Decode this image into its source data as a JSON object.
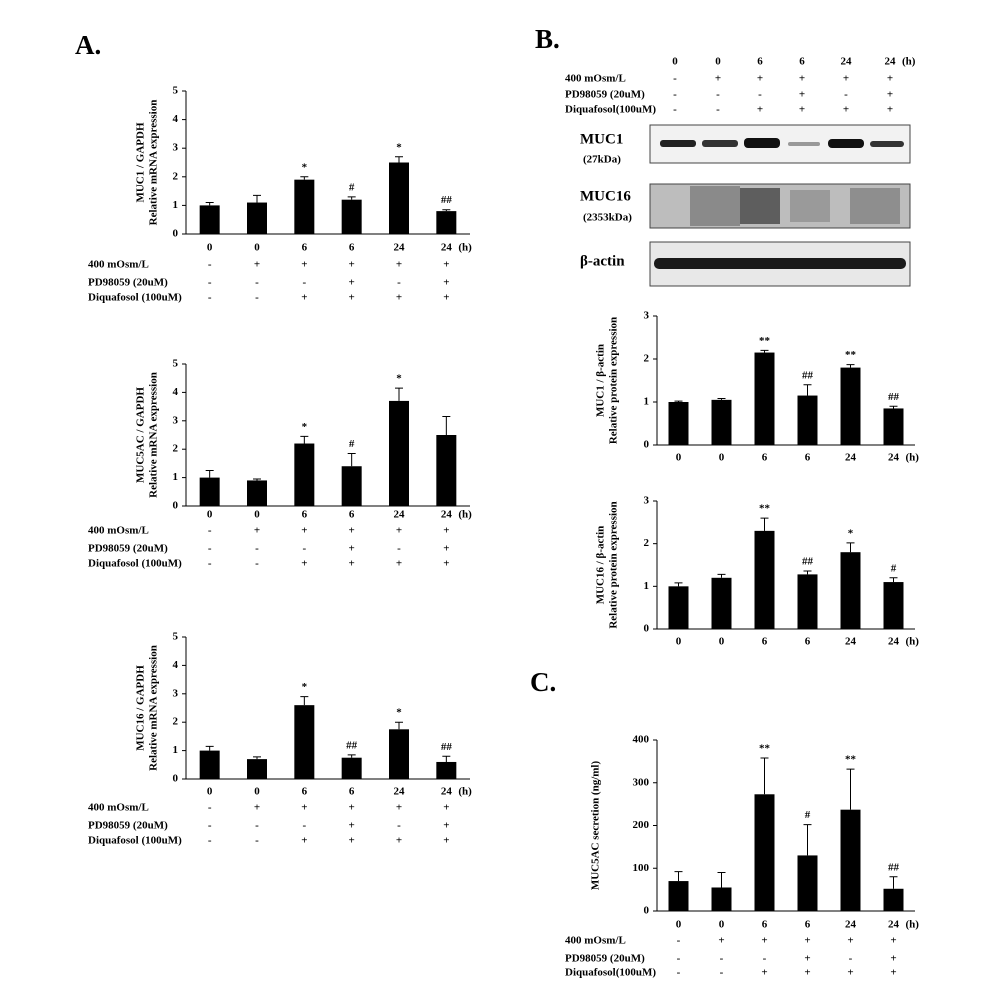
{
  "panel_labels": [
    "A.",
    "B.",
    "C."
  ],
  "blot": {
    "categories": [
      "0",
      "0",
      "6",
      "6",
      "24",
      "24"
    ],
    "x_unit": "(h)",
    "conditions": [
      {
        "label": "400 mOsm/L",
        "signs": [
          "-",
          "+",
          "+",
          "+",
          "+",
          "+"
        ]
      },
      {
        "label": "PD98059 (20uM)",
        "signs": [
          "-",
          "-",
          "-",
          "+",
          "-",
          "+"
        ]
      },
      {
        "label": "Diquafosol(100uM)",
        "signs": [
          "-",
          "-",
          "+",
          "+",
          "+",
          "+"
        ]
      }
    ],
    "rows": [
      {
        "label": "MUC1",
        "sublabel": "(27kDa)"
      },
      {
        "label": "MUC16",
        "sublabel": "(2353kDa)"
      },
      {
        "label": "β-actin"
      }
    ]
  },
  "chart_data": [
    {
      "type": "bar",
      "y_label": [
        "MUC1 / GAPDH",
        "Relative mRNA expression"
      ],
      "categories": [
        "0",
        "0",
        "6",
        "6",
        "24",
        "24"
      ],
      "x_unit": "(h)",
      "series": [
        {
          "color": "#000000",
          "values": [
            1.0,
            1.1,
            1.9,
            1.2,
            2.5,
            0.8
          ],
          "errors": [
            0.1,
            0.25,
            0.1,
            0.1,
            0.2,
            0.05
          ]
        }
      ],
      "annotations": [
        null,
        null,
        "*",
        "#",
        "*",
        "##"
      ],
      "ylim": [
        0,
        5
      ],
      "yticks": [
        0,
        1,
        2,
        3,
        4,
        5
      ],
      "conditions": [
        {
          "label": "400 mOsm/L",
          "signs": [
            "-",
            "+",
            "+",
            "+",
            "+",
            "+"
          ]
        },
        {
          "label": "PD98059 (20uM)",
          "signs": [
            "-",
            "-",
            "-",
            "+",
            "-",
            "+"
          ]
        },
        {
          "label": "Diquafosol (100uM)",
          "signs": [
            "-",
            "-",
            "+",
            "+",
            "+",
            "+"
          ]
        }
      ]
    },
    {
      "type": "bar",
      "y_label": [
        "MUC5AC / GAPDH",
        "Relative mRNA expression"
      ],
      "categories": [
        "0",
        "0",
        "6",
        "6",
        "24",
        "24"
      ],
      "x_unit": "(h)",
      "series": [
        {
          "color": "#000000",
          "values": [
            1.0,
            0.9,
            2.2,
            1.4,
            3.7,
            2.5
          ],
          "errors": [
            0.25,
            0.05,
            0.25,
            0.45,
            0.45,
            0.65
          ]
        }
      ],
      "annotations": [
        null,
        null,
        "*",
        "#",
        "*",
        null
      ],
      "ylim": [
        0,
        5
      ],
      "yticks": [
        0,
        1,
        2,
        3,
        4,
        5
      ],
      "conditions": [
        {
          "label": "400 mOsm/L",
          "signs": [
            "-",
            "+",
            "+",
            "+",
            "+",
            "+"
          ]
        },
        {
          "label": "PD98059 (20uM)",
          "signs": [
            "-",
            "-",
            "-",
            "+",
            "-",
            "+"
          ]
        },
        {
          "label": "Diquafosol (100uM)",
          "signs": [
            "-",
            "-",
            "+",
            "+",
            "+",
            "+"
          ]
        }
      ]
    },
    {
      "type": "bar",
      "y_label": [
        "MUC16 / GAPDH",
        "Relative mRNA expression"
      ],
      "categories": [
        "0",
        "0",
        "6",
        "6",
        "24",
        "24"
      ],
      "x_unit": "(h)",
      "series": [
        {
          "color": "#000000",
          "values": [
            1.0,
            0.7,
            2.6,
            0.75,
            1.75,
            0.6
          ],
          "errors": [
            0.15,
            0.08,
            0.3,
            0.1,
            0.25,
            0.2
          ]
        }
      ],
      "annotations": [
        null,
        null,
        "*",
        "##",
        "*",
        "##"
      ],
      "ylim": [
        0,
        5
      ],
      "yticks": [
        0,
        1,
        2,
        3,
        4,
        5
      ],
      "conditions": [
        {
          "label": "400 mOsm/L",
          "signs": [
            "-",
            "+",
            "+",
            "+",
            "+",
            "+"
          ]
        },
        {
          "label": "PD98059 (20uM)",
          "signs": [
            "-",
            "-",
            "-",
            "+",
            "-",
            "+"
          ]
        },
        {
          "label": "Diquafosol (100uM)",
          "signs": [
            "-",
            "-",
            "+",
            "+",
            "+",
            "+"
          ]
        }
      ]
    },
    {
      "type": "bar",
      "y_label": [
        "MUC1 / β-actin",
        "Relative protein expression"
      ],
      "categories": [
        "0",
        "0",
        "6",
        "6",
        "24",
        "24"
      ],
      "x_unit": "(h)",
      "series": [
        {
          "color": "#000000",
          "values": [
            1.0,
            1.05,
            2.15,
            1.15,
            1.8,
            0.85
          ],
          "errors": [
            0.02,
            0.03,
            0.05,
            0.25,
            0.07,
            0.05
          ]
        }
      ],
      "annotations": [
        null,
        null,
        "**",
        "##",
        "**",
        "##"
      ],
      "ylim": [
        0,
        3
      ],
      "yticks": [
        0,
        1,
        2,
        3
      ]
    },
    {
      "type": "bar",
      "y_label": [
        "MUC16 / β-actin",
        "Relative protein expression"
      ],
      "categories": [
        "0",
        "0",
        "6",
        "6",
        "24",
        "24"
      ],
      "x_unit": "(h)",
      "series": [
        {
          "color": "#000000",
          "values": [
            1.0,
            1.2,
            2.3,
            1.28,
            1.8,
            1.1
          ],
          "errors": [
            0.08,
            0.08,
            0.3,
            0.08,
            0.22,
            0.1
          ]
        }
      ],
      "annotations": [
        null,
        null,
        "**",
        "##",
        "*",
        "#"
      ],
      "ylim": [
        0,
        3
      ],
      "yticks": [
        0,
        1,
        2,
        3
      ]
    },
    {
      "type": "bar",
      "y_label": [
        "MUC5AC  secretion (ng/ml)"
      ],
      "categories": [
        "0",
        "0",
        "6",
        "6",
        "24",
        "24"
      ],
      "x_unit": "(h)",
      "series": [
        {
          "color": "#000000",
          "values": [
            70,
            55,
            273,
            130,
            237,
            52
          ],
          "errors": [
            22,
            35,
            85,
            72,
            95,
            28
          ]
        }
      ],
      "annotations": [
        null,
        null,
        "**",
        "#",
        "**",
        "##"
      ],
      "ylim": [
        0,
        400
      ],
      "yticks": [
        0,
        100,
        200,
        300,
        400
      ],
      "conditions": [
        {
          "label": "400 mOsm/L",
          "signs": [
            "-",
            "+",
            "+",
            "+",
            "+",
            "+"
          ]
        },
        {
          "label": "PD98059 (20uM)",
          "signs": [
            "-",
            "-",
            "-",
            "+",
            "-",
            "+"
          ]
        },
        {
          "label": "Diquafosol(100uM)",
          "signs": [
            "-",
            "-",
            "+",
            "+",
            "+",
            "+"
          ]
        }
      ]
    }
  ]
}
